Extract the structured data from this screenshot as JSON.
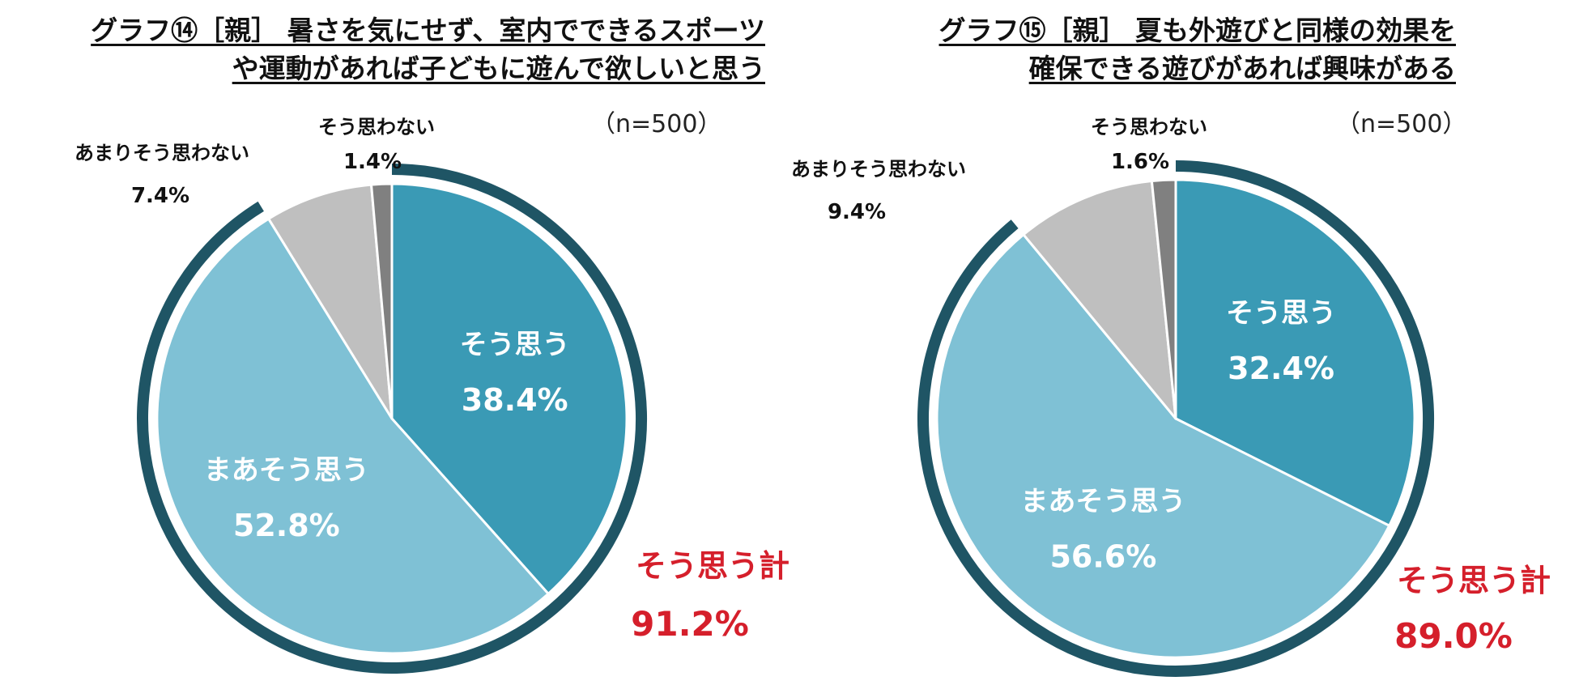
{
  "chart_data": [
    {
      "type": "pie",
      "title_lines": [
        "グラフ⑭［親］ 暑さを気にせず、室内でできるスポーツ",
        "や運動があれば子どもに遊んで欲しいと思う"
      ],
      "sample_size": "（n=500）",
      "slices": [
        {
          "label": "そう思う",
          "value": 38.4,
          "value_label": "38.4%",
          "color": "#3a9ab5"
        },
        {
          "label": "まあそう思う",
          "value": 52.8,
          "value_label": "52.8%",
          "color": "#7fc1d5"
        },
        {
          "label": "あまりそう思わない",
          "value": 7.4,
          "value_label": "7.4%",
          "color": "#bfbfbf"
        },
        {
          "label": "そう思わない",
          "value": 1.4,
          "value_label": "1.4%",
          "color": "#808080"
        }
      ],
      "total": {
        "label": "そう思う計",
        "value": 91.2,
        "value_label": "91.2%",
        "color": "#d51f2b"
      },
      "outer_ring_color": "#1f5565"
    },
    {
      "type": "pie",
      "title_lines": [
        "グラフ⑮［親］ 夏も外遊びと同様の効果を",
        "確保できる遊びがあれば興味がある"
      ],
      "sample_size": "（n=500）",
      "slices": [
        {
          "label": "そう思う",
          "value": 32.4,
          "value_label": "32.4%",
          "color": "#3a9ab5"
        },
        {
          "label": "まあそう思う",
          "value": 56.6,
          "value_label": "56.6%",
          "color": "#7fc1d5"
        },
        {
          "label": "あまりそう思わない",
          "value": 9.4,
          "value_label": "9.4%",
          "color": "#bfbfbf"
        },
        {
          "label": "そう思わない",
          "value": 1.6,
          "value_label": "1.6%",
          "color": "#808080"
        }
      ],
      "total": {
        "label": "そう思う計",
        "value": 89.0,
        "value_label": "89.0%",
        "color": "#d51f2b"
      },
      "outer_ring_color": "#1f5565"
    }
  ]
}
